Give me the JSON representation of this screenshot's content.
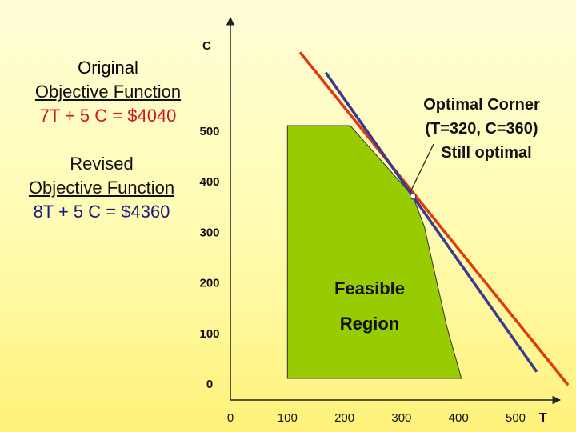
{
  "legend": {
    "original": {
      "line1": "Original",
      "line2": "Objective Function",
      "formula": "7T + 5 C = $4040",
      "color": "#e03a10"
    },
    "revised": {
      "line1": "Revised",
      "line2": "Objective Function",
      "formula": "8T + 5 C = $4360",
      "color": "#3a3a90"
    }
  },
  "chart_data": {
    "type": "line",
    "xlabel": "T",
    "ylabel": "C",
    "xlim": [
      0,
      500
    ],
    "ylim": [
      0,
      500
    ],
    "x_ticks": [
      "0",
      "100",
      "200",
      "300",
      "400",
      "500"
    ],
    "y_ticks": [
      "0",
      "100",
      "200",
      "300",
      "400",
      "500"
    ],
    "x_tick_values": [
      0,
      100,
      200,
      300,
      400,
      500
    ],
    "y_tick_values": [
      0,
      100,
      200,
      300,
      400,
      500
    ],
    "feasible_region": {
      "label_line1": "Feasible",
      "label_line2": "Region",
      "color": "#99cc00",
      "vertices": [
        [
          100,
          0
        ],
        [
          100,
          500
        ],
        [
          210,
          500
        ],
        [
          320,
          360
        ],
        [
          340,
          300
        ],
        [
          360,
          200
        ],
        [
          380,
          100
        ],
        [
          405,
          0
        ]
      ]
    },
    "objective_lines": [
      {
        "name": "7T + 5 C = $4040",
        "points": [
          [
            122,
            645
          ],
          [
            592,
            -13
          ]
        ],
        "color": "#e03a10"
      },
      {
        "name": "8T + 5 C = $4360",
        "points": [
          [
            167,
            605
          ],
          [
            537,
            13
          ]
        ],
        "color": "#3a3a90"
      }
    ],
    "optimal_point": {
      "x": 320,
      "y": 360
    },
    "annotation": {
      "line1": "Optimal Corner",
      "line2": "(T=320, C=360)",
      "line3": "Still optimal"
    }
  }
}
